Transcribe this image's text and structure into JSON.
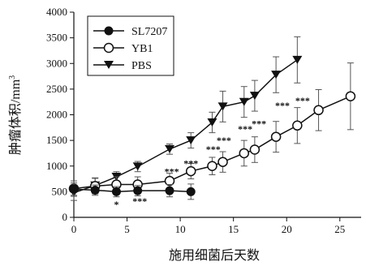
{
  "chart_data": {
    "type": "line",
    "xlabel": "施用细菌后天数",
    "ylabel_main": "肿瘤体积/",
    "ylabel_unit": "mm",
    "ylabel_sup": "3",
    "xlim": [
      0,
      27
    ],
    "ylim": [
      0,
      4000
    ],
    "xticks": [
      0,
      5,
      10,
      15,
      20,
      25
    ],
    "yticks": [
      0,
      500,
      1000,
      1500,
      2000,
      2500,
      3000,
      3500,
      4000
    ],
    "grid": false,
    "legend_position": "top-left",
    "series": [
      {
        "name": "SL7207",
        "marker": "filled-circle",
        "color": "#000000",
        "x": [
          0,
          2,
          4,
          6,
          9,
          11
        ],
        "y": [
          550,
          530,
          500,
          520,
          520,
          500
        ],
        "err": [
          120,
          100,
          100,
          100,
          120,
          150
        ]
      },
      {
        "name": "YB1",
        "marker": "open-circle",
        "color": "#000000",
        "x": [
          0,
          2,
          4,
          6,
          9,
          11,
          13,
          14,
          16,
          17,
          19,
          21,
          23,
          26
        ],
        "y": [
          560,
          610,
          640,
          640,
          710,
          900,
          1000,
          1080,
          1250,
          1320,
          1570,
          1790,
          2090,
          2360
        ],
        "err": [
          150,
          150,
          150,
          150,
          150,
          150,
          170,
          200,
          250,
          250,
          300,
          350,
          400,
          650
        ]
      },
      {
        "name": "PBS",
        "marker": "filled-triangle-down",
        "color": "#000000",
        "x": [
          0,
          2,
          4,
          6,
          9,
          11,
          13,
          14,
          16,
          17,
          19,
          21
        ],
        "y": [
          480,
          620,
          790,
          990,
          1330,
          1500,
          1850,
          2160,
          2250,
          2370,
          2780,
          3070
        ],
        "err": [
          150,
          150,
          100,
          100,
          100,
          150,
          200,
          300,
          300,
          300,
          350,
          450
        ]
      }
    ],
    "annotations": [
      {
        "text": "*",
        "x": 4,
        "y": 250
      },
      {
        "text": "***",
        "x": 6.2,
        "y": 320
      },
      {
        "text": "***",
        "x": 9.2,
        "y": 890
      },
      {
        "text": "***",
        "x": 11,
        "y": 1050
      },
      {
        "text": "***",
        "x": 13.1,
        "y": 1330
      },
      {
        "text": "***",
        "x": 14.1,
        "y": 1500
      },
      {
        "text": "***",
        "x": 16.1,
        "y": 1720
      },
      {
        "text": "***",
        "x": 17.4,
        "y": 1830
      },
      {
        "text": "***",
        "x": 19.6,
        "y": 2180
      },
      {
        "text": "***",
        "x": 21.5,
        "y": 2280
      }
    ]
  }
}
